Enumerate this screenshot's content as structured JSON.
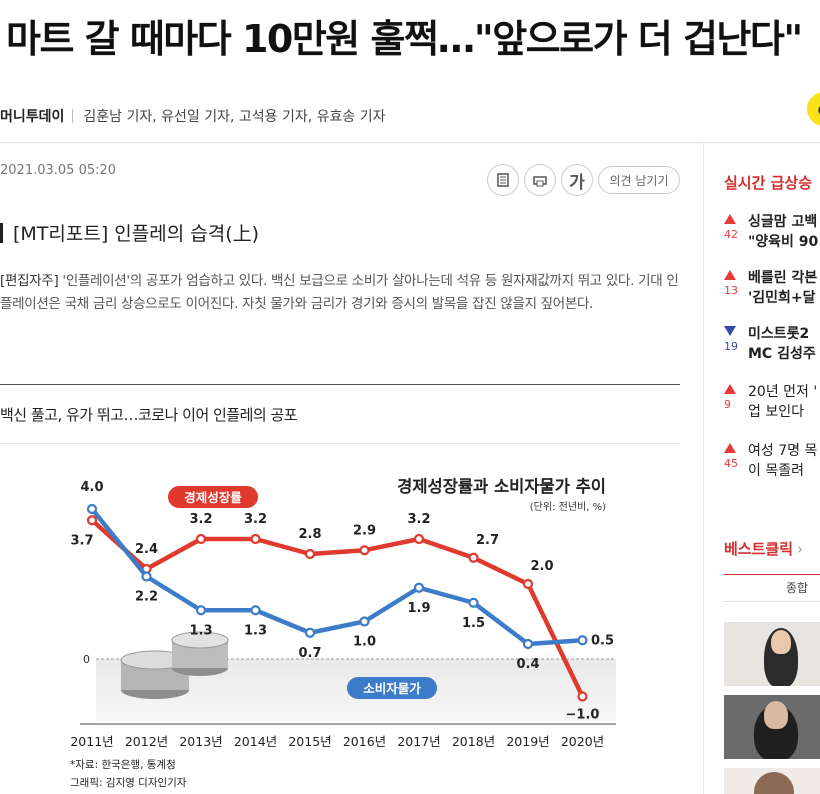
{
  "article": {
    "headline": "마트 갈 때마다 10만원 훌쩍…\"앞으로가 더 겁난다\"",
    "press": "머니투데이",
    "reporters": "김훈남 기자, 유선일 기자, 고석용 기자, 유효송 기자",
    "date": "2021.03.05 05:20",
    "comment_label": "의견 남기기",
    "font_button_label": "가",
    "subhead": "[MT리포트] 인플레의 습격(上)",
    "editor_tag": "[편집자주]",
    "editor_note": " '인플레이션'의 공포가 엄습하고 있다. 백신 보급으로 소비가 살아나는데 석유 등 원자재값까지 뛰고 있다. 기대 인플레이션은 국채 금리 상승으로도 이어진다. 자칫 물가와 금리가 경기와 증시의 발목을 잡진 않을지 짚어본다.",
    "chart_caption": "백신 풀고, 유가 뛰고…코로나 이어 인플레의 공포"
  },
  "sidebar": {
    "realtime_title": "실시간 급상승",
    "ranks": [
      {
        "dir": "up",
        "num": "42",
        "line1": "싱글맘 고백",
        "line2": "\"양육비 90",
        "bold1": true,
        "bold2": true
      },
      {
        "dir": "up",
        "num": "13",
        "line1": "베를린 각본",
        "line2": "'김민희+달",
        "bold1": true,
        "bold2": true
      },
      {
        "dir": "down",
        "num": "19",
        "line1": "미스트롯2",
        "line2": "MC 김성주",
        "bold1": true,
        "bold2": true
      },
      {
        "dir": "up",
        "num": "9",
        "line1": "20년 먼저 '",
        "line2": "업 보인다",
        "bold1": false,
        "bold2": false
      },
      {
        "dir": "up",
        "num": "45",
        "line1": "여성 7명 목",
        "line2": "이 목졸려 ",
        "bold1": false,
        "bold2": false
      }
    ],
    "best_title": "베스트클릭",
    "best_chevron": "›",
    "best_tab": "종합"
  },
  "colors": {
    "gdp": "#e03a2f",
    "cpi": "#3d7cc9",
    "accent": "#d32f2f"
  },
  "icons": [
    "print-list-icon",
    "print-icon",
    "font-size-icon",
    "kakao-icon"
  ],
  "chart_data": {
    "type": "line",
    "title": "경제성장률과 소비자물가 추이",
    "unit": "(단위: 전년비, %)",
    "categories": [
      "2011년",
      "2012년",
      "2013년",
      "2014년",
      "2015년",
      "2016년",
      "2017년",
      "2018년",
      "2019년",
      "2020년"
    ],
    "series": [
      {
        "name": "경제성장률",
        "values": [
          3.7,
          2.4,
          3.2,
          3.2,
          2.8,
          2.9,
          3.2,
          2.7,
          2.0,
          -1.0
        ]
      },
      {
        "name": "소비자물가",
        "values": [
          4.0,
          2.2,
          1.3,
          1.3,
          0.7,
          1.0,
          1.9,
          1.5,
          0.4,
          0.5
        ]
      }
    ],
    "value_labels": {
      "gdp": [
        "3.7",
        "2.4",
        "3.2",
        "3.2",
        "2.8",
        "2.9",
        "3.2",
        "2.7",
        "2.0",
        "−1.0"
      ],
      "cpi": [
        "4.0",
        "2.2",
        "1.3",
        "1.3",
        "0.7",
        "1.0",
        "1.9",
        "1.5",
        "0.4",
        "0.5"
      ]
    },
    "zero_label": "0",
    "ylim": [
      -1.5,
      4.5
    ],
    "source": "*자료: 한국은행, 통계청",
    "credit": "그래픽: 김지영 디자인기자"
  }
}
